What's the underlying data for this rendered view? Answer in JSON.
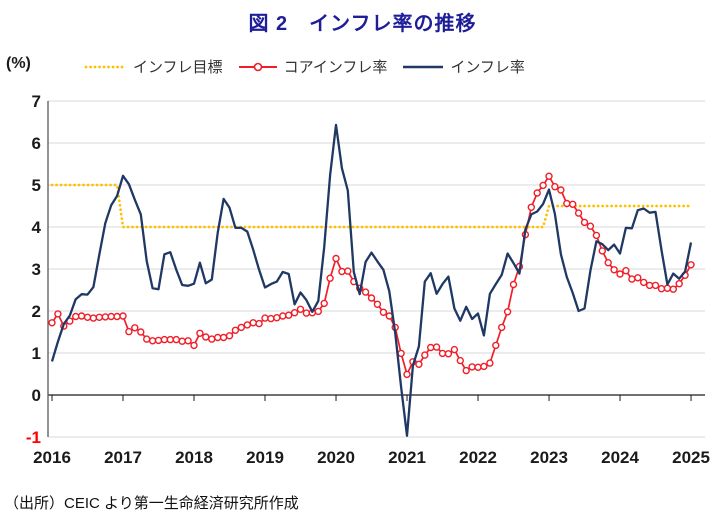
{
  "title": "図 2　インフレ率の推移",
  "y_axis_unit": "(%)",
  "source": "（出所）CEIC より第一生命経済研究所作成",
  "colors": {
    "title": "#1e1e99",
    "target": "#FFC000",
    "core": "#F01E28",
    "headline": "#1F3864",
    "gridline": "#D9D9D9",
    "zero_axis": "#1A1A1A",
    "axis_spine": "#595959",
    "tick_label": "#1A1A1A",
    "negative_tick_label": "#FF0000"
  },
  "legend": {
    "items": [
      {
        "label": "インフレ目標",
        "color": "#FFC000",
        "style": "dotted"
      },
      {
        "label": "コアインフレ率",
        "color": "#F01E28",
        "style": "line-circle-marker"
      },
      {
        "label": "インフレ率",
        "color": "#1F3864",
        "style": "solid"
      }
    ]
  },
  "chart_data": {
    "type": "line",
    "title": "図 2　インフレ率の推移",
    "ylabel": "(%)",
    "ylim": [
      -1,
      7
    ],
    "y_ticks": [
      7,
      6,
      5,
      4,
      3,
      2,
      1,
      0,
      -1
    ],
    "x_unit": "month",
    "x_start": "2016-01",
    "x_end": "2025-01",
    "x_tick_labels": [
      "2016",
      "2017",
      "2018",
      "2019",
      "2020",
      "2021",
      "2022",
      "2023",
      "2024",
      "2025"
    ],
    "grid": "horizontal",
    "legend_position": "top",
    "series": [
      {
        "name": "インフレ目標",
        "color": "#FFC000",
        "dash": true,
        "steps": [
          {
            "value": 5.0,
            "months": 12
          },
          {
            "value": 4.0,
            "months": 72
          },
          {
            "value": 4.5,
            "months": 25
          }
        ]
      },
      {
        "name": "コアインフレ率",
        "color": "#F01E28",
        "marker": "circle",
        "values": [
          1.72,
          1.93,
          1.64,
          1.76,
          1.87,
          1.88,
          1.85,
          1.83,
          1.85,
          1.86,
          1.87,
          1.87,
          1.88,
          1.51,
          1.6,
          1.5,
          1.33,
          1.29,
          1.3,
          1.32,
          1.32,
          1.32,
          1.28,
          1.29,
          1.18,
          1.47,
          1.38,
          1.33,
          1.37,
          1.37,
          1.41,
          1.54,
          1.61,
          1.67,
          1.72,
          1.7,
          1.83,
          1.82,
          1.84,
          1.88,
          1.9,
          1.96,
          2.04,
          1.95,
          1.96,
          1.99,
          2.18,
          2.78,
          3.25,
          2.94,
          2.95,
          2.7,
          2.54,
          2.45,
          2.31,
          2.16,
          1.97,
          1.88,
          1.61,
          0.99,
          0.49,
          0.79,
          0.73,
          0.95,
          1.13,
          1.14,
          0.99,
          0.98,
          1.08,
          0.82,
          0.58,
          0.67,
          0.66,
          0.68,
          0.76,
          1.18,
          1.61,
          1.98,
          2.63,
          3.06,
          3.82,
          4.47,
          4.81,
          4.99,
          5.21,
          4.96,
          4.88,
          4.56,
          4.54,
          4.33,
          4.11,
          4.02,
          3.8,
          3.43,
          3.15,
          2.98,
          2.88,
          2.96,
          2.76,
          2.79,
          2.68,
          2.61,
          2.61,
          2.53,
          2.54,
          2.52,
          2.65,
          2.85,
          3.1
        ]
      },
      {
        "name": "インフレ率",
        "color": "#1F3864",
        "values": [
          0.8,
          1.27,
          1.69,
          1.89,
          2.28,
          2.4,
          2.39,
          2.57,
          3.34,
          4.09,
          4.52,
          4.74,
          5.22,
          5.02,
          4.65,
          4.3,
          3.19,
          2.54,
          2.52,
          3.35,
          3.4,
          2.98,
          2.62,
          2.6,
          2.65,
          3.15,
          2.66,
          2.75,
          3.86,
          4.67,
          4.46,
          3.98,
          3.98,
          3.89,
          3.46,
          2.98,
          2.56,
          2.64,
          2.7,
          2.93,
          2.88,
          2.16,
          2.44,
          2.26,
          1.98,
          2.24,
          3.52,
          5.23,
          6.43,
          5.4,
          4.87,
          2.93,
          2.4,
          3.17,
          3.39,
          3.18,
          2.98,
          2.47,
          1.48,
          0.19,
          -0.97,
          0.7,
          1.16,
          2.7,
          2.9,
          2.41,
          2.64,
          2.82,
          2.06,
          1.77,
          2.1,
          1.81,
          1.94,
          1.42,
          2.41,
          2.64,
          2.86,
          3.37,
          3.14,
          2.89,
          3.94,
          4.3,
          4.37,
          4.55,
          4.89,
          4.31,
          3.35,
          2.81,
          2.43,
          2.0,
          2.06,
          2.96,
          3.66,
          3.59,
          3.45,
          3.58,
          3.37,
          3.98,
          3.97,
          4.4,
          4.44,
          4.34,
          4.36,
          3.45,
          2.63,
          2.89,
          2.77,
          2.94,
          3.63
        ]
      }
    ]
  }
}
